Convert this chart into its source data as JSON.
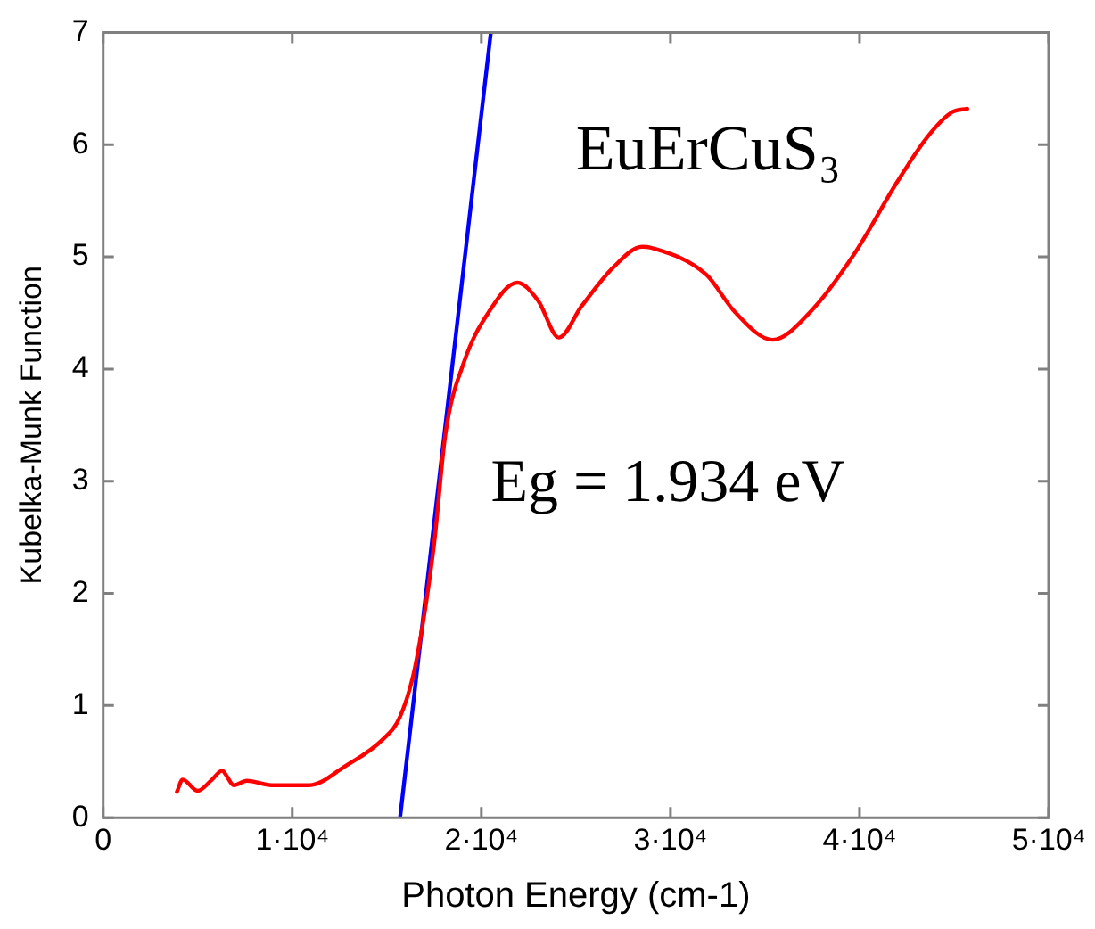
{
  "chart_data": {
    "type": "line",
    "xlabel": "Photon Energy (cm-1)",
    "ylabel": "Kubelka-Munk Function",
    "xlim": [
      0,
      50000
    ],
    "ylim": [
      0,
      7
    ],
    "xticks": [
      0,
      {
        "value": 10000,
        "label": "1·10⁴"
      },
      {
        "value": 20000,
        "label": "2·10⁴"
      },
      {
        "value": 30000,
        "label": "3·10⁴"
      },
      {
        "value": 40000,
        "label": "4·10⁴"
      },
      {
        "value": 50000,
        "label": "5·10⁴"
      }
    ],
    "yticks": [
      0,
      1,
      2,
      3,
      4,
      5,
      6,
      7
    ],
    "grid": false,
    "legend": false,
    "marker": "none",
    "line_style": "solid",
    "series": [
      {
        "color": "#ff0000",
        "x": [
          3900,
          4200,
          5000,
          5700,
          6300,
          6500,
          6900,
          7600,
          8900,
          10900,
          12800,
          14800,
          15700,
          16500,
          17500,
          18100,
          19100,
          20400,
          21900,
          23000,
          24100,
          25300,
          27000,
          28500,
          29000,
          31900,
          33400,
          35400,
          37400,
          39700,
          42000,
          43600,
          44900,
          45700
        ],
        "values": [
          0.23,
          0.34,
          0.24,
          0.33,
          0.42,
          0.38,
          0.29,
          0.33,
          0.29,
          0.29,
          0.46,
          0.7,
          0.9,
          1.35,
          2.44,
          3.42,
          4.07,
          4.51,
          4.77,
          4.61,
          4.28,
          4.56,
          4.91,
          5.09,
          5.08,
          4.84,
          4.51,
          4.26,
          4.51,
          5.02,
          5.67,
          6.07,
          6.29,
          6.32
        ]
      },
      {
        "color": "#0000ff",
        "x": [
          15700,
          20500
        ],
        "values": [
          0,
          7
        ]
      }
    ],
    "annotations": [
      "EuErCuS₃",
      "Eg = 1.934 eV"
    ]
  }
}
